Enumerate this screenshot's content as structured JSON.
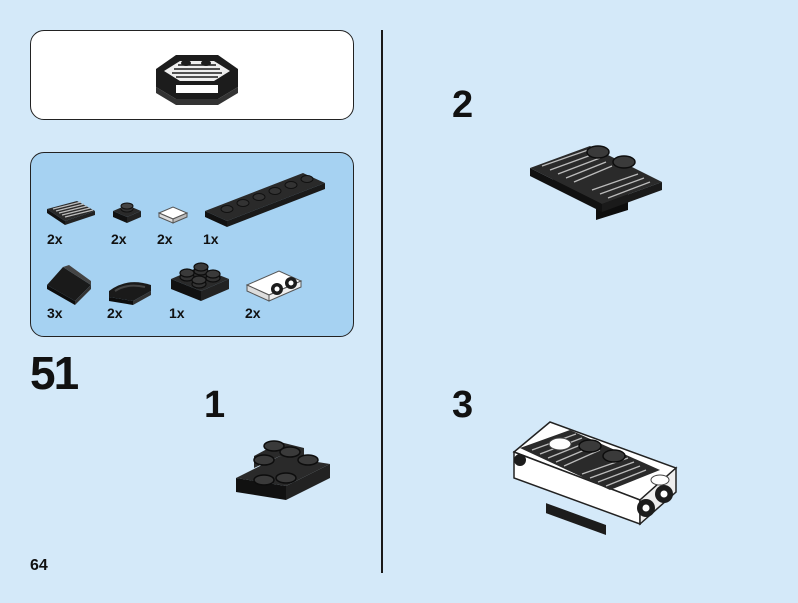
{
  "page_number": "64",
  "step_number": "51",
  "parts_list": [
    {
      "qty": "2x",
      "part": "grille-tile-icon"
    },
    {
      "qty": "2x",
      "part": "plate-1x1-black-icon"
    },
    {
      "qty": "2x",
      "part": "tile-1x1-white-icon"
    },
    {
      "qty": "1x",
      "part": "plate-1x6-black-icon"
    },
    {
      "qty": "3x",
      "part": "slope-black-icon"
    },
    {
      "qty": "2x",
      "part": "curved-slope-black-icon"
    },
    {
      "qty": "1x",
      "part": "plate-2x2-black-icon"
    },
    {
      "qty": "2x",
      "part": "bracket-studs-white-icon"
    }
  ],
  "sub_steps": [
    {
      "label": "1"
    },
    {
      "label": "2"
    },
    {
      "label": "3"
    }
  ],
  "colors": {
    "background": "#d4e9f9",
    "parts_panel": "#a6d2f2",
    "brick_black": "#1c1c1c",
    "brick_white": "#ffffff"
  }
}
